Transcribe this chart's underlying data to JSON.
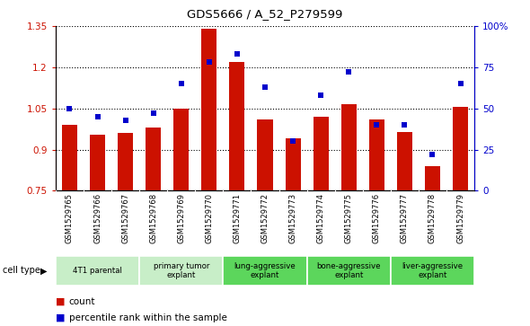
{
  "title": "GDS5666 / A_52_P279599",
  "samples": [
    "GSM1529765",
    "GSM1529766",
    "GSM1529767",
    "GSM1529768",
    "GSM1529769",
    "GSM1529770",
    "GSM1529771",
    "GSM1529772",
    "GSM1529773",
    "GSM1529774",
    "GSM1529775",
    "GSM1529776",
    "GSM1529777",
    "GSM1529778",
    "GSM1529779"
  ],
  "bar_values": [
    0.99,
    0.955,
    0.96,
    0.98,
    1.05,
    1.34,
    1.22,
    1.01,
    0.94,
    1.02,
    1.065,
    1.01,
    0.965,
    0.84,
    1.055
  ],
  "dot_values": [
    50,
    45,
    43,
    47,
    65,
    78,
    83,
    63,
    30,
    58,
    72,
    40,
    40,
    22,
    65
  ],
  "cell_type_groups": [
    {
      "label": "4T1 parental",
      "cols": [
        0,
        1,
        2
      ],
      "color": "#c8eec8"
    },
    {
      "label": "primary tumor\nexplant",
      "cols": [
        3,
        4,
        5
      ],
      "color": "#c8eec8"
    },
    {
      "label": "lung-aggressive\nexplant",
      "cols": [
        6,
        7,
        8
      ],
      "color": "#5cd65c"
    },
    {
      "label": "bone-aggressive\nexplant",
      "cols": [
        9,
        10,
        11
      ],
      "color": "#5cd65c"
    },
    {
      "label": "liver-aggressive\nexplant",
      "cols": [
        12,
        13,
        14
      ],
      "color": "#5cd65c"
    }
  ],
  "ylim_left": [
    0.75,
    1.35
  ],
  "ylim_right": [
    0,
    100
  ],
  "yticks_left": [
    0.75,
    0.9,
    1.05,
    1.2,
    1.35
  ],
  "ytick_labels_left": [
    "0.75",
    "0.9",
    "1.05",
    "1.2",
    "1.35"
  ],
  "yticks_right": [
    0,
    25,
    50,
    75,
    100
  ],
  "ytick_labels_right": [
    "0",
    "25",
    "50",
    "75",
    "100%"
  ],
  "bar_color": "#cc1100",
  "dot_color": "#0000cc",
  "bar_width": 0.55,
  "background_color": "#ffffff",
  "tick_color_left": "#cc1100",
  "tick_color_right": "#0000cc",
  "grid_color": "black",
  "sample_bg_color": "#c8c8c8",
  "legend_bar_label": "count",
  "legend_dot_label": "percentile rank within the sample"
}
